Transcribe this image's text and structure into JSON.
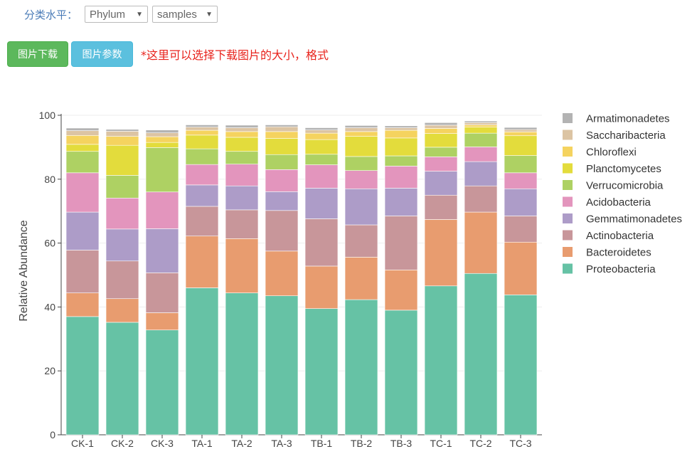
{
  "controls": {
    "level_label": "分类水平：",
    "level_value": "Phylum",
    "samples_value": "samples"
  },
  "buttons": {
    "download": "图片下载",
    "params": "图片参数"
  },
  "note": "*这里可以选择下载图片的大小，格式",
  "colors": {
    "Proteobacteria": "#66c2a5",
    "Bacteroidetes": "#e89c6f",
    "Actinobacteria": "#c8969a",
    "Gemmatimonadetes": "#ad9cc8",
    "Acidobacteria": "#e395bd",
    "Verrucomicrobia": "#aed163",
    "Planctomycetes": "#e3dc3c",
    "Chloroflexi": "#f5d35f",
    "Saccharibacteria": "#dcc4a3",
    "Armatimonadetes": "#b3b3b3"
  },
  "chart_data": {
    "type": "bar",
    "stacked": true,
    "ylabel": "Relative Abundance",
    "xlabel": "",
    "ylim": [
      0,
      100
    ],
    "yticks": [
      0,
      20,
      40,
      60,
      80,
      100
    ],
    "grid": true,
    "legend_position": "right",
    "categories": [
      "CK-1",
      "CK-2",
      "CK-3",
      "TA-1",
      "TA-2",
      "TA-3",
      "TB-1",
      "TB-2",
      "TB-3",
      "TC-1",
      "TC-2",
      "TC-3"
    ],
    "series": [
      {
        "name": "Proteobacteria",
        "values": [
          37.0,
          35.2,
          32.8,
          46.0,
          44.4,
          43.5,
          39.5,
          42.3,
          39.0,
          46.6,
          50.5,
          43.8
        ]
      },
      {
        "name": "Bacteroidetes",
        "values": [
          7.4,
          7.4,
          5.4,
          16.2,
          17.0,
          14.0,
          13.3,
          13.3,
          12.6,
          20.8,
          19.2,
          16.5
        ]
      },
      {
        "name": "Actinobacteria",
        "values": [
          13.4,
          11.8,
          12.5,
          9.3,
          9.0,
          12.7,
          14.8,
          10.1,
          16.9,
          7.6,
          8.2,
          8.2
        ]
      },
      {
        "name": "Gemmatimonadetes",
        "values": [
          11.9,
          10.0,
          13.8,
          6.7,
          7.5,
          5.9,
          9.6,
          11.3,
          8.7,
          7.5,
          7.6,
          8.5
        ]
      },
      {
        "name": "Acidobacteria",
        "values": [
          12.3,
          9.7,
          11.5,
          6.4,
          6.8,
          6.9,
          7.3,
          5.7,
          6.9,
          4.5,
          4.6,
          5.0
        ]
      },
      {
        "name": "Verrucomicrobia",
        "values": [
          6.7,
          7.1,
          13.9,
          4.9,
          4.0,
          4.7,
          3.3,
          4.4,
          3.2,
          3.0,
          4.3,
          5.4
        ]
      },
      {
        "name": "Planctomycetes",
        "values": [
          2.2,
          9.4,
          1.6,
          4.3,
          4.4,
          5.1,
          4.6,
          6.3,
          5.6,
          4.3,
          1.9,
          6.2
        ]
      },
      {
        "name": "Chloroflexi",
        "values": [
          2.8,
          2.8,
          1.8,
          1.5,
          1.8,
          2.1,
          2.0,
          1.5,
          2.4,
          1.6,
          0.7,
          1.2
        ]
      },
      {
        "name": "Saccharibacteria",
        "values": [
          1.5,
          1.6,
          1.2,
          1.0,
          1.2,
          1.5,
          1.0,
          1.2,
          0.8,
          1.0,
          0.7,
          0.7
        ]
      },
      {
        "name": "Armatimonadetes",
        "values": [
          0.8,
          0.6,
          0.9,
          0.7,
          0.8,
          0.6,
          0.7,
          0.7,
          0.6,
          0.8,
          0.5,
          0.7
        ]
      }
    ],
    "legend_order": [
      "Armatimonadetes",
      "Saccharibacteria",
      "Chloroflexi",
      "Planctomycetes",
      "Verrucomicrobia",
      "Acidobacteria",
      "Gemmatimonadetes",
      "Actinobacteria",
      "Bacteroidetes",
      "Proteobacteria"
    ]
  }
}
